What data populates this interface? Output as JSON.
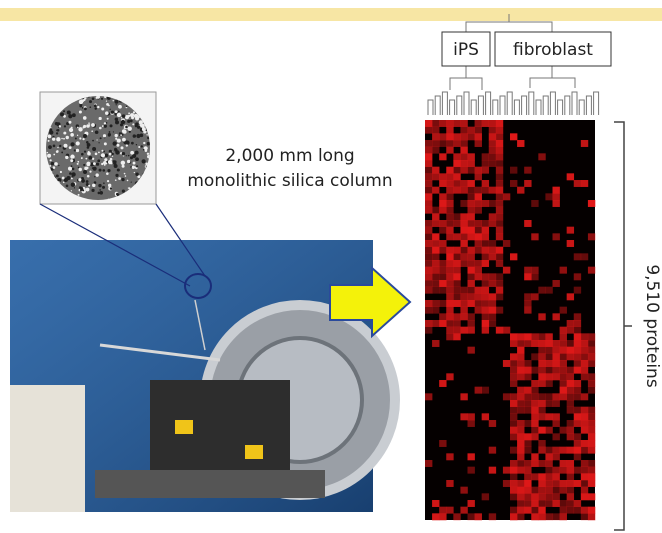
{
  "dendrogram_labels": [
    "iPS",
    "fibroblast"
  ],
  "column_caption": [
    "2,000 mm long",
    "monolithic silica column"
  ],
  "protein_label": "9,510 proteins"
}
